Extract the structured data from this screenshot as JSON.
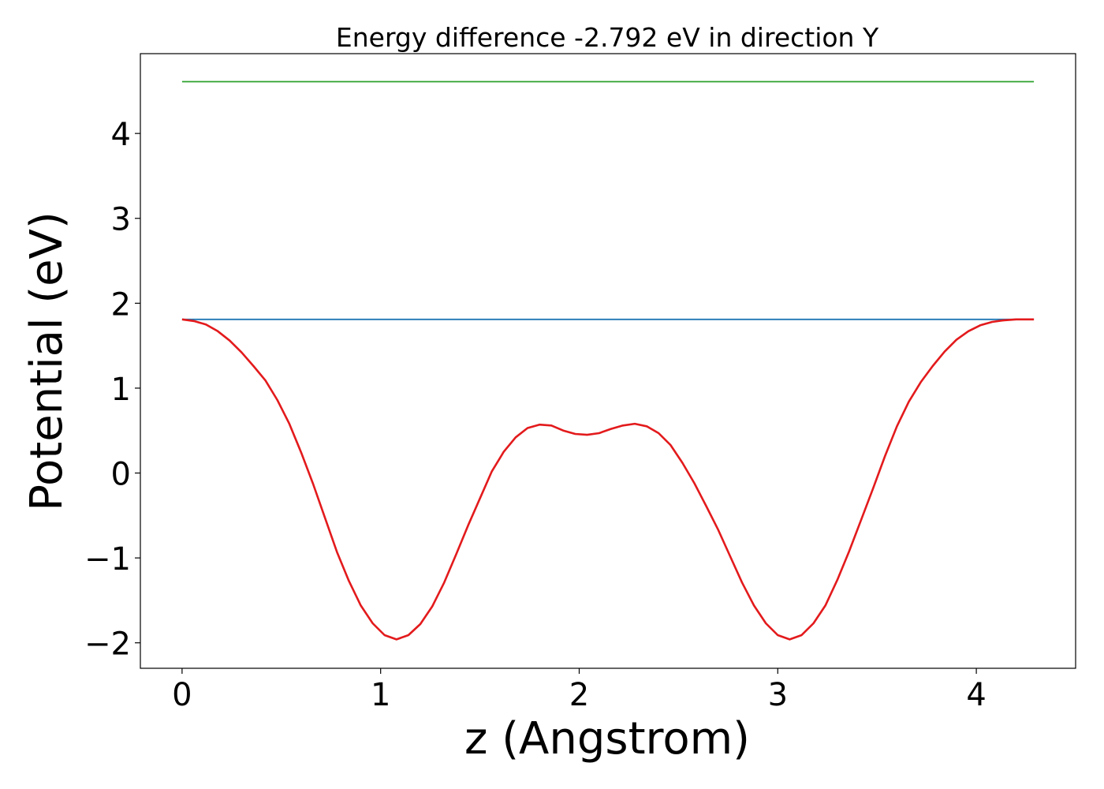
{
  "chart_data": {
    "type": "line",
    "title": "Energy difference -2.792 eV in direction Y",
    "xlabel": "z (Angstrom)",
    "ylabel": "Potential (eV)",
    "xlim": [
      -0.21,
      4.5
    ],
    "ylim": [
      -2.3,
      4.94
    ],
    "xticks": [
      0,
      1,
      2,
      3,
      4
    ],
    "xtick_labels": [
      "0",
      "1",
      "2",
      "3",
      "4"
    ],
    "yticks": [
      -2,
      -1,
      0,
      1,
      2,
      3,
      4
    ],
    "ytick_labels": [
      "−2",
      "−1",
      "0",
      "1",
      "2",
      "3",
      "4"
    ],
    "grid": false,
    "series": [
      {
        "color": "#2ca02c",
        "x": [
          0,
          4.29
        ],
        "y": [
          4.61,
          4.61
        ]
      },
      {
        "color": "#1f77b4",
        "x": [
          0,
          4.29
        ],
        "y": [
          1.81,
          1.81
        ]
      },
      {
        "color": "#e31a1c",
        "x": [
          0,
          0.06,
          0.12,
          0.18,
          0.24,
          0.3,
          0.36,
          0.42,
          0.48,
          0.54,
          0.6,
          0.66,
          0.72,
          0.78,
          0.84,
          0.9,
          0.96,
          1.02,
          1.08,
          1.14,
          1.2,
          1.26,
          1.32,
          1.38,
          1.44,
          1.5,
          1.56,
          1.62,
          1.68,
          1.74,
          1.8,
          1.86,
          1.92,
          1.98,
          2.04,
          2.1,
          2.16,
          2.22,
          2.28,
          2.34,
          2.4,
          2.46,
          2.52,
          2.58,
          2.64,
          2.7,
          2.76,
          2.82,
          2.88,
          2.94,
          3.0,
          3.06,
          3.12,
          3.18,
          3.24,
          3.3,
          3.36,
          3.42,
          3.48,
          3.54,
          3.6,
          3.66,
          3.72,
          3.78,
          3.84,
          3.9,
          3.96,
          4.02,
          4.08,
          4.14,
          4.2,
          4.29
        ],
        "y": [
          1.81,
          1.79,
          1.75,
          1.67,
          1.56,
          1.42,
          1.26,
          1.09,
          0.86,
          0.58,
          0.24,
          -0.13,
          -0.53,
          -0.93,
          -1.27,
          -1.56,
          -1.77,
          -1.91,
          -1.96,
          -1.91,
          -1.78,
          -1.57,
          -1.29,
          -0.96,
          -0.62,
          -0.3,
          0.02,
          0.25,
          0.42,
          0.53,
          0.57,
          0.56,
          0.5,
          0.46,
          0.45,
          0.47,
          0.52,
          0.56,
          0.58,
          0.55,
          0.47,
          0.33,
          0.12,
          -0.12,
          -0.39,
          -0.67,
          -0.98,
          -1.29,
          -1.56,
          -1.77,
          -1.91,
          -1.96,
          -1.91,
          -1.77,
          -1.56,
          -1.26,
          -0.92,
          -0.55,
          -0.18,
          0.2,
          0.55,
          0.84,
          1.07,
          1.26,
          1.43,
          1.57,
          1.67,
          1.74,
          1.78,
          1.8,
          1.81,
          1.81
        ]
      }
    ]
  }
}
